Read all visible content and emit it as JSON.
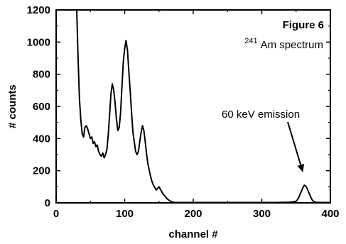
{
  "chart_data": {
    "type": "line",
    "title": "Figure 6",
    "subtitle_sup": "241",
    "subtitle_main": "Am spectrum",
    "xlabel": "channel #",
    "ylabel": "# counts",
    "xlim": [
      0,
      400
    ],
    "ylim": [
      0,
      1200
    ],
    "xticks": [
      0,
      100,
      200,
      300,
      400
    ],
    "yticks": [
      0,
      200,
      400,
      600,
      800,
      1000,
      1200
    ],
    "grid": false,
    "annotation": {
      "text": "60 keV emission",
      "arrow_to": [
        360,
        190
      ]
    },
    "series": [
      {
        "x": [
          30,
          32,
          34,
          36,
          38,
          40,
          42,
          44,
          46,
          48,
          50,
          52,
          54,
          56,
          58,
          60,
          62,
          64,
          66,
          68,
          70,
          72,
          74,
          76,
          78,
          80,
          82,
          84,
          86,
          88,
          90,
          92,
          94,
          96,
          98,
          100,
          102,
          104,
          106,
          108,
          110,
          112,
          114,
          116,
          118,
          120,
          122,
          124,
          126,
          128,
          130,
          132,
          134,
          136,
          138,
          140,
          142,
          144,
          146,
          148,
          150,
          152,
          154,
          156,
          158,
          160,
          162,
          164,
          166,
          168,
          170,
          172,
          174,
          176,
          178,
          180,
          190,
          200,
          220,
          240,
          260,
          280,
          300,
          320,
          340,
          345,
          350,
          352,
          354,
          356,
          358,
          360,
          362,
          364,
          366,
          368,
          370,
          372,
          374,
          376,
          378,
          380,
          385,
          390,
          400
        ],
        "y": [
          1200,
          900,
          650,
          520,
          430,
          410,
          470,
          480,
          460,
          430,
          400,
          410,
          370,
          380,
          350,
          360,
          320,
          300,
          290,
          310,
          280,
          300,
          330,
          420,
          550,
          680,
          740,
          700,
          620,
          520,
          450,
          470,
          560,
          720,
          880,
          960,
          1010,
          950,
          820,
          700,
          560,
          440,
          380,
          320,
          300,
          320,
          380,
          440,
          480,
          450,
          380,
          300,
          240,
          200,
          160,
          130,
          110,
          95,
          80,
          90,
          100,
          85,
          70,
          55,
          45,
          35,
          25,
          18,
          12,
          8,
          5,
          3,
          2,
          2,
          2,
          2,
          2,
          2,
          2,
          2,
          2,
          2,
          2,
          2,
          4,
          6,
          10,
          20,
          35,
          55,
          75,
          95,
          110,
          105,
          90,
          70,
          50,
          30,
          15,
          8,
          4,
          3,
          2,
          2,
          2
        ]
      }
    ]
  }
}
